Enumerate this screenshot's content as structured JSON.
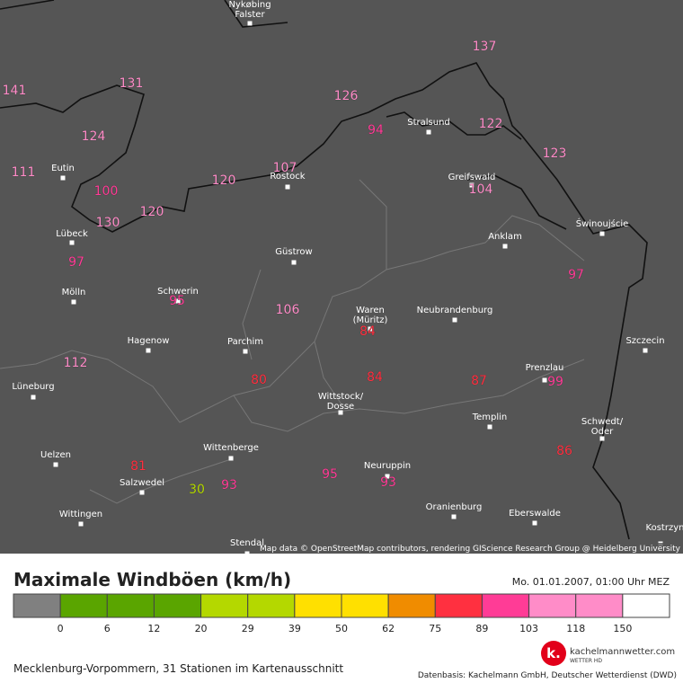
{
  "map": {
    "cities": [
      {
        "lines": [
          "Nykøbing",
          "Falster"
        ]
      },
      {
        "lines": [
          "Eutin"
        ]
      },
      {
        "lines": [
          "Lübeck"
        ]
      },
      {
        "lines": [
          "Mölln"
        ]
      },
      {
        "lines": [
          "Schwerin"
        ]
      },
      {
        "lines": [
          "Hagenow"
        ]
      },
      {
        "lines": [
          "Parchim"
        ]
      },
      {
        "lines": [
          "Lüneburg"
        ]
      },
      {
        "lines": [
          "Uelzen"
        ]
      },
      {
        "lines": [
          "Salzwedel"
        ]
      },
      {
        "lines": [
          "Wittingen"
        ]
      },
      {
        "lines": [
          "Wittenberge"
        ]
      },
      {
        "lines": [
          "Stendal"
        ]
      },
      {
        "lines": [
          "Güstrow"
        ]
      },
      {
        "lines": [
          "Rostock"
        ]
      },
      {
        "lines": [
          "Stralsund"
        ]
      },
      {
        "lines": [
          "Greifswald"
        ]
      },
      {
        "lines": [
          "Anklam"
        ]
      },
      {
        "lines": [
          "Świnoujście"
        ]
      },
      {
        "lines": [
          "Waren",
          "(Müritz)"
        ]
      },
      {
        "lines": [
          "Neubrandenburg"
        ]
      },
      {
        "lines": [
          "Szczecin"
        ]
      },
      {
        "lines": [
          "Prenzlau"
        ]
      },
      {
        "lines": [
          "Wittstock/",
          "Dosse"
        ]
      },
      {
        "lines": [
          "Templin"
        ]
      },
      {
        "lines": [
          "Schwedt/",
          "Oder"
        ]
      },
      {
        "lines": [
          "Neuruppin"
        ]
      },
      {
        "lines": [
          "Eberswalde"
        ]
      },
      {
        "lines": [
          "Oranienburg"
        ]
      },
      {
        "lines": [
          "Kostrzyn"
        ]
      }
    ],
    "stations": [
      141,
      131,
      124,
      111,
      100,
      130,
      120,
      120,
      107,
      126,
      94,
      137,
      122,
      104,
      123,
      97,
      97,
      95,
      106,
      84,
      112,
      80,
      84,
      87,
      99,
      86,
      81,
      30,
      93,
      95,
      93
    ],
    "attribution": "Map data © OpenStreetMap contributors, rendering GIScience Research Group @ Heidelberg University"
  },
  "legend": {
    "title": "Maximale Windböen (km/h)",
    "date": "Mo. 01.01.2007, 01:00 Uhr MEZ",
    "edges": [
      0,
      6,
      12,
      20,
      29,
      39,
      50,
      62,
      75,
      89,
      103,
      118,
      150
    ],
    "colors": [
      "#808080",
      "#5aa500",
      "#5aa500",
      "#5aa500",
      "#b4d800",
      "#b4d800",
      "#ffe000",
      "#ffe000",
      "#f08c00",
      "#ff3040",
      "#ff3c96",
      "#ff8cc8",
      "#ff8cc8",
      "#ffffff"
    ]
  },
  "footer": {
    "region": "Mecklenburg-Vorpommern, 31 Stationen im Kartenausschnitt",
    "source": "Datenbasis: Kachelmann GmbH, Deutscher Wetterdienst (DWD)",
    "brand": "kachelmannwetter.com",
    "brand_sub": "WETTER HD"
  }
}
